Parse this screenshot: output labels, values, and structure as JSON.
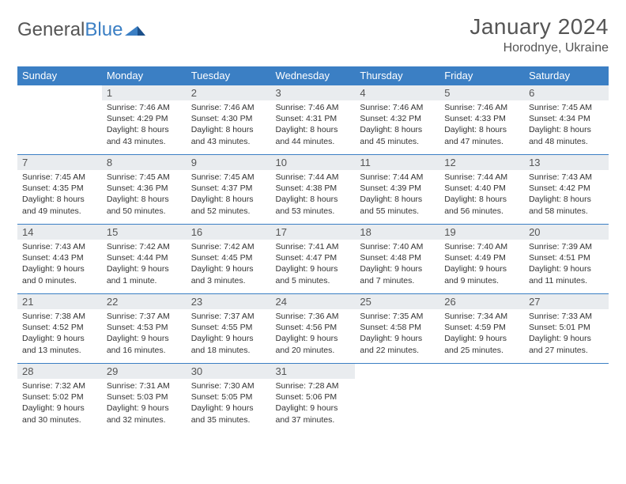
{
  "logo": {
    "text1": "General",
    "text2": "Blue"
  },
  "title": "January 2024",
  "location": "Horodnye, Ukraine",
  "colors": {
    "header_bg": "#3b7fc4",
    "header_text": "#ffffff",
    "daynum_bg": "#e9ecef",
    "border": "#3b7fc4",
    "text": "#333333",
    "page_bg": "#ffffff"
  },
  "day_headers": [
    "Sunday",
    "Monday",
    "Tuesday",
    "Wednesday",
    "Thursday",
    "Friday",
    "Saturday"
  ],
  "weeks": [
    [
      {
        "n": "",
        "lines": []
      },
      {
        "n": "1",
        "lines": [
          "Sunrise: 7:46 AM",
          "Sunset: 4:29 PM",
          "Daylight: 8 hours",
          "and 43 minutes."
        ]
      },
      {
        "n": "2",
        "lines": [
          "Sunrise: 7:46 AM",
          "Sunset: 4:30 PM",
          "Daylight: 8 hours",
          "and 43 minutes."
        ]
      },
      {
        "n": "3",
        "lines": [
          "Sunrise: 7:46 AM",
          "Sunset: 4:31 PM",
          "Daylight: 8 hours",
          "and 44 minutes."
        ]
      },
      {
        "n": "4",
        "lines": [
          "Sunrise: 7:46 AM",
          "Sunset: 4:32 PM",
          "Daylight: 8 hours",
          "and 45 minutes."
        ]
      },
      {
        "n": "5",
        "lines": [
          "Sunrise: 7:46 AM",
          "Sunset: 4:33 PM",
          "Daylight: 8 hours",
          "and 47 minutes."
        ]
      },
      {
        "n": "6",
        "lines": [
          "Sunrise: 7:45 AM",
          "Sunset: 4:34 PM",
          "Daylight: 8 hours",
          "and 48 minutes."
        ]
      }
    ],
    [
      {
        "n": "7",
        "lines": [
          "Sunrise: 7:45 AM",
          "Sunset: 4:35 PM",
          "Daylight: 8 hours",
          "and 49 minutes."
        ]
      },
      {
        "n": "8",
        "lines": [
          "Sunrise: 7:45 AM",
          "Sunset: 4:36 PM",
          "Daylight: 8 hours",
          "and 50 minutes."
        ]
      },
      {
        "n": "9",
        "lines": [
          "Sunrise: 7:45 AM",
          "Sunset: 4:37 PM",
          "Daylight: 8 hours",
          "and 52 minutes."
        ]
      },
      {
        "n": "10",
        "lines": [
          "Sunrise: 7:44 AM",
          "Sunset: 4:38 PM",
          "Daylight: 8 hours",
          "and 53 minutes."
        ]
      },
      {
        "n": "11",
        "lines": [
          "Sunrise: 7:44 AM",
          "Sunset: 4:39 PM",
          "Daylight: 8 hours",
          "and 55 minutes."
        ]
      },
      {
        "n": "12",
        "lines": [
          "Sunrise: 7:44 AM",
          "Sunset: 4:40 PM",
          "Daylight: 8 hours",
          "and 56 minutes."
        ]
      },
      {
        "n": "13",
        "lines": [
          "Sunrise: 7:43 AM",
          "Sunset: 4:42 PM",
          "Daylight: 8 hours",
          "and 58 minutes."
        ]
      }
    ],
    [
      {
        "n": "14",
        "lines": [
          "Sunrise: 7:43 AM",
          "Sunset: 4:43 PM",
          "Daylight: 9 hours",
          "and 0 minutes."
        ]
      },
      {
        "n": "15",
        "lines": [
          "Sunrise: 7:42 AM",
          "Sunset: 4:44 PM",
          "Daylight: 9 hours",
          "and 1 minute."
        ]
      },
      {
        "n": "16",
        "lines": [
          "Sunrise: 7:42 AM",
          "Sunset: 4:45 PM",
          "Daylight: 9 hours",
          "and 3 minutes."
        ]
      },
      {
        "n": "17",
        "lines": [
          "Sunrise: 7:41 AM",
          "Sunset: 4:47 PM",
          "Daylight: 9 hours",
          "and 5 minutes."
        ]
      },
      {
        "n": "18",
        "lines": [
          "Sunrise: 7:40 AM",
          "Sunset: 4:48 PM",
          "Daylight: 9 hours",
          "and 7 minutes."
        ]
      },
      {
        "n": "19",
        "lines": [
          "Sunrise: 7:40 AM",
          "Sunset: 4:49 PM",
          "Daylight: 9 hours",
          "and 9 minutes."
        ]
      },
      {
        "n": "20",
        "lines": [
          "Sunrise: 7:39 AM",
          "Sunset: 4:51 PM",
          "Daylight: 9 hours",
          "and 11 minutes."
        ]
      }
    ],
    [
      {
        "n": "21",
        "lines": [
          "Sunrise: 7:38 AM",
          "Sunset: 4:52 PM",
          "Daylight: 9 hours",
          "and 13 minutes."
        ]
      },
      {
        "n": "22",
        "lines": [
          "Sunrise: 7:37 AM",
          "Sunset: 4:53 PM",
          "Daylight: 9 hours",
          "and 16 minutes."
        ]
      },
      {
        "n": "23",
        "lines": [
          "Sunrise: 7:37 AM",
          "Sunset: 4:55 PM",
          "Daylight: 9 hours",
          "and 18 minutes."
        ]
      },
      {
        "n": "24",
        "lines": [
          "Sunrise: 7:36 AM",
          "Sunset: 4:56 PM",
          "Daylight: 9 hours",
          "and 20 minutes."
        ]
      },
      {
        "n": "25",
        "lines": [
          "Sunrise: 7:35 AM",
          "Sunset: 4:58 PM",
          "Daylight: 9 hours",
          "and 22 minutes."
        ]
      },
      {
        "n": "26",
        "lines": [
          "Sunrise: 7:34 AM",
          "Sunset: 4:59 PM",
          "Daylight: 9 hours",
          "and 25 minutes."
        ]
      },
      {
        "n": "27",
        "lines": [
          "Sunrise: 7:33 AM",
          "Sunset: 5:01 PM",
          "Daylight: 9 hours",
          "and 27 minutes."
        ]
      }
    ],
    [
      {
        "n": "28",
        "lines": [
          "Sunrise: 7:32 AM",
          "Sunset: 5:02 PM",
          "Daylight: 9 hours",
          "and 30 minutes."
        ]
      },
      {
        "n": "29",
        "lines": [
          "Sunrise: 7:31 AM",
          "Sunset: 5:03 PM",
          "Daylight: 9 hours",
          "and 32 minutes."
        ]
      },
      {
        "n": "30",
        "lines": [
          "Sunrise: 7:30 AM",
          "Sunset: 5:05 PM",
          "Daylight: 9 hours",
          "and 35 minutes."
        ]
      },
      {
        "n": "31",
        "lines": [
          "Sunrise: 7:28 AM",
          "Sunset: 5:06 PM",
          "Daylight: 9 hours",
          "and 37 minutes."
        ]
      },
      {
        "n": "",
        "lines": []
      },
      {
        "n": "",
        "lines": []
      },
      {
        "n": "",
        "lines": []
      }
    ]
  ]
}
